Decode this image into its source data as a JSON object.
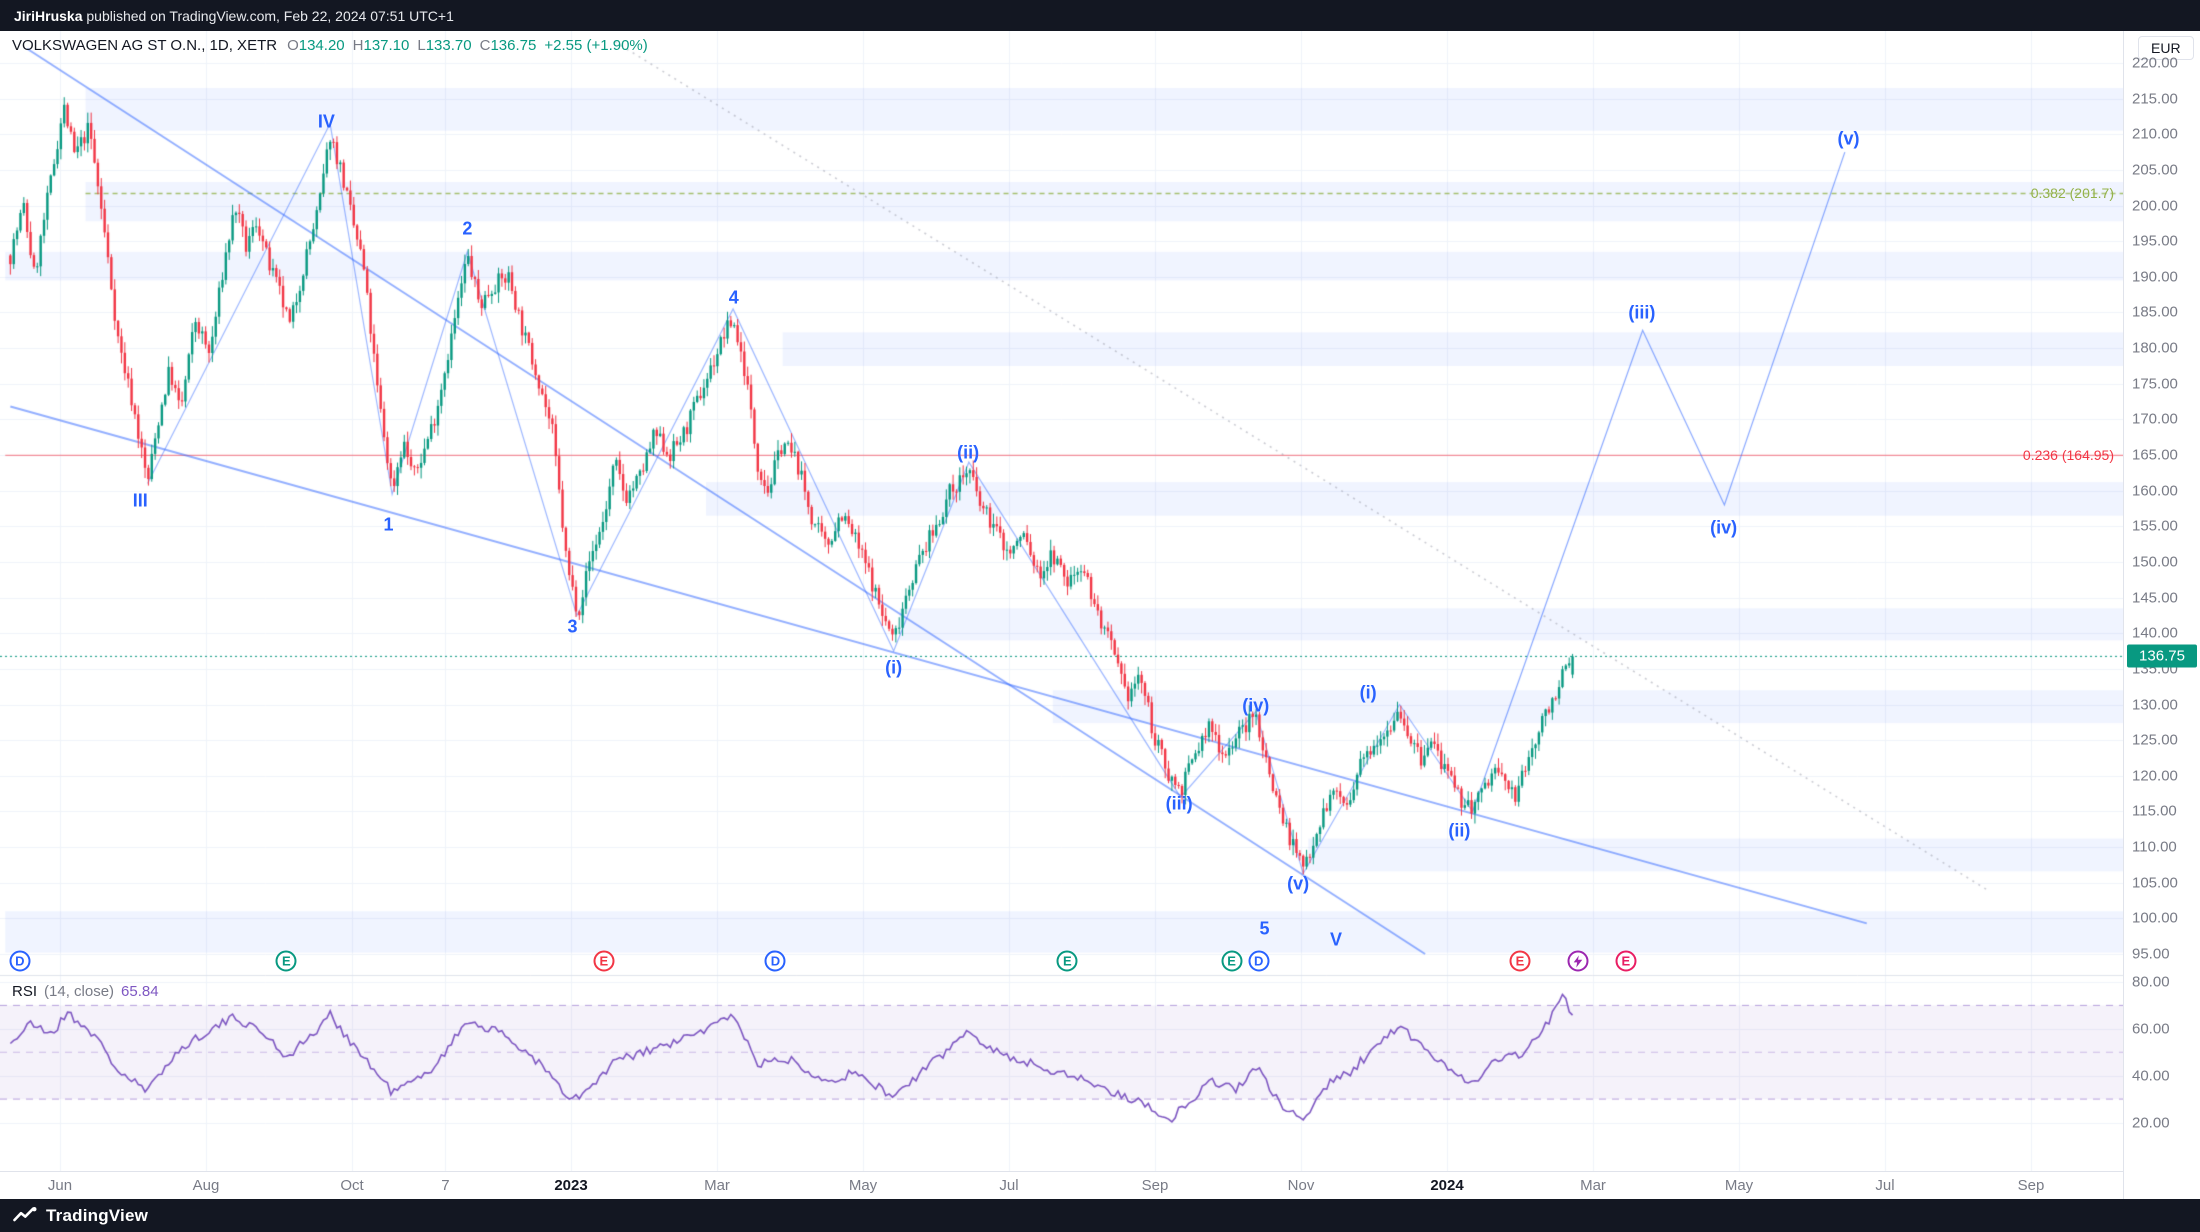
{
  "publish_bar": {
    "user": "JiriHruska",
    "rest": " published on TradingView.com, Feb 22, 2024 07:51 UTC+1"
  },
  "symbol_legend": {
    "title": "VOLKSWAGEN AG ST O.N., 1D, XETR",
    "o_label": "O",
    "o_value": "134.20",
    "h_label": "H",
    "h_value": "137.10",
    "l_label": "L",
    "l_value": "133.70",
    "c_label": "C",
    "c_value": "136.75",
    "change": "+2.55 (+1.90%)"
  },
  "price_axis": {
    "currency": "EUR",
    "last_badge": "136.75",
    "ticks": [
      "220.00",
      "215.00",
      "210.00",
      "205.00",
      "200.00",
      "195.00",
      "190.00",
      "185.00",
      "180.00",
      "175.00",
      "170.00",
      "165.00",
      "160.00",
      "155.00",
      "150.00",
      "145.00",
      "140.00",
      "135.00",
      "130.00",
      "125.00",
      "120.00",
      "115.00",
      "110.00",
      "105.00",
      "100.00",
      "95.00"
    ]
  },
  "rsi_panel": {
    "title": "RSI",
    "params": "(14, close)",
    "value": "65.84",
    "ticks": [
      "80.00",
      "60.00",
      "40.00",
      "20.00"
    ],
    "upper": 70,
    "middle": 50,
    "lower": 30
  },
  "time_axis": {
    "labels": [
      {
        "t": "Jun",
        "m": 0
      },
      {
        "t": "Aug",
        "m": 2
      },
      {
        "t": "Oct",
        "m": 4
      },
      {
        "t": "7",
        "m": 5.28
      },
      {
        "t": "2023",
        "m": 7,
        "major": true
      },
      {
        "t": "Mar",
        "m": 9
      },
      {
        "t": "May",
        "m": 11
      },
      {
        "t": "Jul",
        "m": 13
      },
      {
        "t": "Sep",
        "m": 15
      },
      {
        "t": "Nov",
        "m": 17
      },
      {
        "t": "2024",
        "m": 19,
        "major": true
      },
      {
        "t": "Mar",
        "m": 21
      },
      {
        "t": "May",
        "m": 23
      },
      {
        "t": "Jul",
        "m": 25
      },
      {
        "t": "Sep",
        "m": 27
      }
    ]
  },
  "footer": {
    "brand": "TradingView"
  },
  "colors": {
    "up": "#089981",
    "down": "#f23645",
    "wave": "#2962ff",
    "trend": "rgba(41,98,255,0.5)",
    "zone": "rgba(41,98,255,0.07)",
    "rsi": "#7e57c2",
    "grid": "#f0f3fa",
    "fib_up_label": "#94b24a",
    "fib_up_line": "rgba(148,178,74,0.8)",
    "fib_dn_label": "#f23645",
    "fib_dn_line": "rgba(242,54,69,0.55)"
  },
  "chart_data": {
    "type": "candlestick",
    "symbol": "VOLKSWAGEN AG ST O.N.",
    "interval": "1D",
    "exchange": "XETR",
    "currency": "EUR",
    "ohlc_last": {
      "open": 134.2,
      "high": 137.1,
      "low": 133.7,
      "close": 136.75,
      "change": 2.55,
      "change_pct": 1.9
    },
    "last_price": 136.75,
    "price_scale": {
      "min": 95,
      "max": 220,
      "step": 5
    },
    "candles": {
      "start_m": -0.68,
      "end_m": 20.72,
      "count": 464
    },
    "price_path_anchors": [
      [
        -0.68,
        193
      ],
      [
        -0.5,
        200
      ],
      [
        -0.35,
        190
      ],
      [
        -0.15,
        202
      ],
      [
        0.05,
        214
      ],
      [
        0.2,
        207
      ],
      [
        0.4,
        211
      ],
      [
        0.6,
        197
      ],
      [
        0.8,
        181
      ],
      [
        1.0,
        172
      ],
      [
        1.2,
        161
      ],
      [
        1.35,
        170
      ],
      [
        1.5,
        177
      ],
      [
        1.65,
        171
      ],
      [
        1.85,
        184
      ],
      [
        2.05,
        179
      ],
      [
        2.25,
        192
      ],
      [
        2.4,
        200
      ],
      [
        2.55,
        194
      ],
      [
        2.7,
        198
      ],
      [
        2.85,
        192
      ],
      [
        3.0,
        188
      ],
      [
        3.15,
        183
      ],
      [
        3.35,
        192
      ],
      [
        3.55,
        200
      ],
      [
        3.7,
        210
      ],
      [
        3.85,
        205
      ],
      [
        4.0,
        198
      ],
      [
        4.15,
        192
      ],
      [
        4.35,
        174
      ],
      [
        4.55,
        160
      ],
      [
        4.7,
        167
      ],
      [
        4.85,
        162
      ],
      [
        5.0,
        166
      ],
      [
        5.15,
        171
      ],
      [
        5.35,
        181
      ],
      [
        5.58,
        193
      ],
      [
        5.75,
        186
      ],
      [
        5.95,
        189
      ],
      [
        6.15,
        190
      ],
      [
        6.35,
        182
      ],
      [
        6.55,
        176
      ],
      [
        6.75,
        168
      ],
      [
        6.95,
        149
      ],
      [
        7.1,
        143
      ],
      [
        7.25,
        150
      ],
      [
        7.45,
        156
      ],
      [
        7.6,
        164
      ],
      [
        7.75,
        159
      ],
      [
        7.95,
        162
      ],
      [
        8.15,
        168
      ],
      [
        8.35,
        165
      ],
      [
        8.55,
        168
      ],
      [
        8.75,
        173
      ],
      [
        8.95,
        178
      ],
      [
        9.1,
        182
      ],
      [
        9.22,
        184
      ],
      [
        9.4,
        176
      ],
      [
        9.55,
        164
      ],
      [
        9.7,
        160
      ],
      [
        9.9,
        167
      ],
      [
        10.1,
        164
      ],
      [
        10.3,
        156
      ],
      [
        10.5,
        152
      ],
      [
        10.7,
        157
      ],
      [
        10.9,
        153
      ],
      [
        11.1,
        148
      ],
      [
        11.25,
        143
      ],
      [
        11.42,
        139
      ],
      [
        11.6,
        146
      ],
      [
        11.8,
        151
      ],
      [
        12.0,
        155
      ],
      [
        12.2,
        160
      ],
      [
        12.45,
        163
      ],
      [
        12.6,
        158
      ],
      [
        12.8,
        155
      ],
      [
        13.0,
        151
      ],
      [
        13.2,
        154
      ],
      [
        13.4,
        148
      ],
      [
        13.6,
        151
      ],
      [
        13.8,
        147
      ],
      [
        14.0,
        150
      ],
      [
        14.2,
        143
      ],
      [
        14.4,
        138
      ],
      [
        14.6,
        131
      ],
      [
        14.8,
        134
      ],
      [
        15.0,
        125
      ],
      [
        15.2,
        120
      ],
      [
        15.35,
        118
      ],
      [
        15.55,
        123
      ],
      [
        15.75,
        127
      ],
      [
        15.95,
        123
      ],
      [
        16.15,
        126
      ],
      [
        16.38,
        128.5
      ],
      [
        16.55,
        121
      ],
      [
        16.75,
        114
      ],
      [
        16.9,
        110
      ],
      [
        17.03,
        107
      ],
      [
        17.2,
        112
      ],
      [
        17.35,
        116
      ],
      [
        17.5,
        118
      ],
      [
        17.65,
        115
      ],
      [
        17.8,
        121
      ],
      [
        18.0,
        125
      ],
      [
        18.2,
        127
      ],
      [
        18.35,
        129.5
      ],
      [
        18.5,
        125
      ],
      [
        18.65,
        122
      ],
      [
        18.8,
        125
      ],
      [
        19.0,
        120
      ],
      [
        19.15,
        117
      ],
      [
        19.35,
        115.5
      ],
      [
        19.5,
        118
      ],
      [
        19.65,
        121
      ],
      [
        19.8,
        119
      ],
      [
        19.95,
        117
      ],
      [
        20.1,
        122
      ],
      [
        20.25,
        126
      ],
      [
        20.4,
        130
      ],
      [
        20.52,
        132.5
      ],
      [
        20.62,
        134.5
      ],
      [
        20.72,
        136.4
      ]
    ],
    "wave_labels": [
      {
        "t": "III",
        "m": 1.1,
        "p": 158.5
      },
      {
        "t": "IV",
        "m": 3.65,
        "p": 211.7
      },
      {
        "t": "1",
        "m": 4.5,
        "p": 155.2
      },
      {
        "t": "2",
        "m": 5.58,
        "p": 196.7
      },
      {
        "t": "3",
        "m": 7.02,
        "p": 140.9
      },
      {
        "t": "4",
        "m": 9.23,
        "p": 187.1
      },
      {
        "t": "(i)",
        "m": 11.42,
        "p": 135.1
      },
      {
        "t": "(ii)",
        "m": 12.44,
        "p": 165.3
      },
      {
        "t": "(iii)",
        "m": 15.33,
        "p": 116.0
      },
      {
        "t": "(iv)",
        "m": 16.38,
        "p": 129.8
      },
      {
        "t": "(v)",
        "m": 16.96,
        "p": 104.8
      },
      {
        "t": "5",
        "m": 16.5,
        "p": 98.5
      },
      {
        "t": "V",
        "m": 17.48,
        "p": 97.0
      },
      {
        "t": "(i)",
        "m": 17.92,
        "p": 131.6
      },
      {
        "t": "(ii)",
        "m": 19.17,
        "p": 112.3
      },
      {
        "t": "(iii)",
        "m": 21.67,
        "p": 184.9
      },
      {
        "t": "(iv)",
        "m": 22.79,
        "p": 154.8
      },
      {
        "t": "(v)",
        "m": 24.5,
        "p": 209.3
      }
    ],
    "wave_polyline": [
      [
        1.2,
        161
      ],
      [
        3.7,
        211.5
      ],
      [
        4.55,
        159.5
      ],
      [
        5.58,
        193.5
      ],
      [
        7.08,
        142.5
      ],
      [
        9.22,
        185.5
      ],
      [
        11.42,
        137.5
      ],
      [
        12.45,
        164
      ],
      [
        15.35,
        117
      ],
      [
        16.38,
        129
      ],
      [
        17.03,
        106.3
      ],
      [
        18.35,
        130
      ],
      [
        19.35,
        115
      ]
    ],
    "projection_polyline": [
      [
        19.35,
        115
      ],
      [
        21.68,
        182.5
      ],
      [
        22.8,
        158
      ],
      [
        24.45,
        207.5
      ]
    ],
    "trendlines": [
      [
        [
          -0.45,
          222
        ],
        [
          18.7,
          95
        ]
      ],
      [
        [
          -0.68,
          171.8
        ],
        [
          24.75,
          99.3
        ]
      ]
    ],
    "dashed_line": [
      [
        7.6,
        223
      ],
      [
        26.4,
        104
      ]
    ],
    "zones": [
      {
        "p1": 216.5,
        "p2": 210.5,
        "m0": 0.35
      },
      {
        "p1": 203.3,
        "p2": 197.8,
        "m0": 0.35
      },
      {
        "p1": 193.5,
        "p2": 189.5,
        "m0": -0.75
      },
      {
        "p1": 182.2,
        "p2": 177.5,
        "m0": 9.9
      },
      {
        "p1": 161.2,
        "p2": 156.5,
        "m0": 8.85
      },
      {
        "p1": 143.5,
        "p2": 139.0,
        "m0": 11.5
      },
      {
        "p1": 132.0,
        "p2": 127.4,
        "m0": 13.6
      },
      {
        "p1": 111.2,
        "p2": 106.6,
        "m0": 17.1
      },
      {
        "p1": 101.0,
        "p2": 95.2,
        "m0": -0.75
      }
    ],
    "fib_levels": [
      {
        "label": "0.382 (201.7)",
        "price": 201.7,
        "style": "up",
        "m0": 0.35
      },
      {
        "label": "0.236 (164.95)",
        "price": 164.95,
        "style": "dn",
        "m0": -0.75
      }
    ],
    "events": [
      {
        "m": -0.55,
        "label": "D",
        "color": "#2962ff",
        "kind": "dividend"
      },
      {
        "m": 3.1,
        "label": "E",
        "color": "#089981",
        "kind": "earnings"
      },
      {
        "m": 7.45,
        "label": "E",
        "color": "#f23645",
        "kind": "earnings"
      },
      {
        "m": 9.8,
        "label": "D",
        "color": "#2962ff",
        "kind": "dividend"
      },
      {
        "m": 13.8,
        "label": "E",
        "color": "#089981",
        "kind": "earnings"
      },
      {
        "m": 16.05,
        "label": "E",
        "color": "#089981",
        "kind": "earnings"
      },
      {
        "m": 16.42,
        "label": "D",
        "color": "#2962ff",
        "kind": "dividend"
      },
      {
        "m": 20.0,
        "label": "E",
        "color": "#f23645",
        "kind": "earnings"
      },
      {
        "m": 20.8,
        "label": "",
        "color": "#9c27b0",
        "kind": "alert"
      },
      {
        "m": 21.45,
        "label": "E",
        "color": "#e91e63",
        "kind": "earnings"
      }
    ],
    "rsi_anchors": [
      [
        -0.68,
        54
      ],
      [
        -0.4,
        62
      ],
      [
        -0.1,
        58
      ],
      [
        0.1,
        67
      ],
      [
        0.45,
        58
      ],
      [
        0.8,
        42
      ],
      [
        1.2,
        33
      ],
      [
        1.5,
        47
      ],
      [
        1.9,
        57
      ],
      [
        2.4,
        65
      ],
      [
        2.8,
        58
      ],
      [
        3.1,
        48
      ],
      [
        3.55,
        60
      ],
      [
        3.7,
        66
      ],
      [
        4.1,
        50
      ],
      [
        4.55,
        33
      ],
      [
        5.0,
        40
      ],
      [
        5.35,
        53
      ],
      [
        5.58,
        64
      ],
      [
        6.1,
        57
      ],
      [
        6.55,
        46
      ],
      [
        7.0,
        29
      ],
      [
        7.25,
        34
      ],
      [
        7.6,
        46
      ],
      [
        8.0,
        50
      ],
      [
        8.5,
        55
      ],
      [
        9.0,
        62
      ],
      [
        9.22,
        67
      ],
      [
        9.55,
        45
      ],
      [
        10.0,
        47
      ],
      [
        10.5,
        38
      ],
      [
        10.9,
        41
      ],
      [
        11.42,
        31
      ],
      [
        11.9,
        44
      ],
      [
        12.45,
        59
      ],
      [
        12.9,
        49
      ],
      [
        13.4,
        44
      ],
      [
        13.9,
        40
      ],
      [
        14.4,
        33
      ],
      [
        14.8,
        29
      ],
      [
        15.2,
        21
      ],
      [
        15.5,
        30
      ],
      [
        15.8,
        38
      ],
      [
        16.1,
        34
      ],
      [
        16.38,
        44
      ],
      [
        16.7,
        28
      ],
      [
        17.03,
        21
      ],
      [
        17.35,
        36
      ],
      [
        17.7,
        42
      ],
      [
        18.0,
        52
      ],
      [
        18.35,
        61
      ],
      [
        18.7,
        51
      ],
      [
        19.0,
        44
      ],
      [
        19.35,
        37
      ],
      [
        19.7,
        47
      ],
      [
        20.0,
        49
      ],
      [
        20.25,
        57
      ],
      [
        20.45,
        66
      ],
      [
        20.58,
        74
      ],
      [
        20.65,
        70
      ],
      [
        20.72,
        65.84
      ]
    ]
  }
}
